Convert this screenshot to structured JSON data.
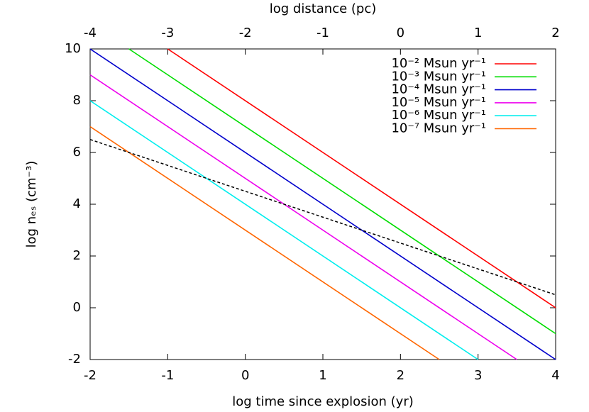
{
  "chart_data": {
    "type": "line",
    "xlabel": "log time since explosion (yr)",
    "x2label": "log distance (pc)",
    "ylabel": "log nₑₛ (cm⁻³)",
    "xlim": [
      -2,
      4
    ],
    "xticks": [
      -2,
      -1,
      0,
      1,
      2,
      3,
      4
    ],
    "x2lim": [
      -4,
      2
    ],
    "x2ticks": [
      -4,
      -3,
      -2,
      -1,
      0,
      1,
      2
    ],
    "ylim": [
      -2,
      10
    ],
    "yticks": [
      -2,
      0,
      2,
      4,
      6,
      8,
      10
    ],
    "legend": "upper right",
    "series": [
      {
        "name": "10⁻² Msun yr⁻¹",
        "color": "#ff0000",
        "x": [
          -1,
          4
        ],
        "values": [
          10,
          0
        ]
      },
      {
        "name": "10⁻³ Msun yr⁻¹",
        "color": "#00dd00",
        "x": [
          -1.5,
          4
        ],
        "values": [
          10,
          -1
        ]
      },
      {
        "name": "10⁻⁴ Msun yr⁻¹",
        "color": "#0000cc",
        "x": [
          -2,
          4
        ],
        "values": [
          10,
          -2
        ]
      },
      {
        "name": "10⁻⁵ Msun yr⁻¹",
        "color": "#ee00ee",
        "x": [
          -2,
          3.5
        ],
        "values": [
          9,
          -2
        ]
      },
      {
        "name": "10⁻⁶ Msun yr⁻¹",
        "color": "#00eeee",
        "x": [
          -2,
          3
        ],
        "values": [
          8,
          -2
        ]
      },
      {
        "name": "10⁻⁷ Msun yr⁻¹",
        "color": "#ff6600",
        "x": [
          -2,
          2.5
        ],
        "values": [
          7,
          -2
        ]
      },
      {
        "color": "#000000",
        "dashed": true,
        "x": [
          -2,
          4
        ],
        "values": [
          6.5,
          0.5
        ]
      }
    ]
  }
}
